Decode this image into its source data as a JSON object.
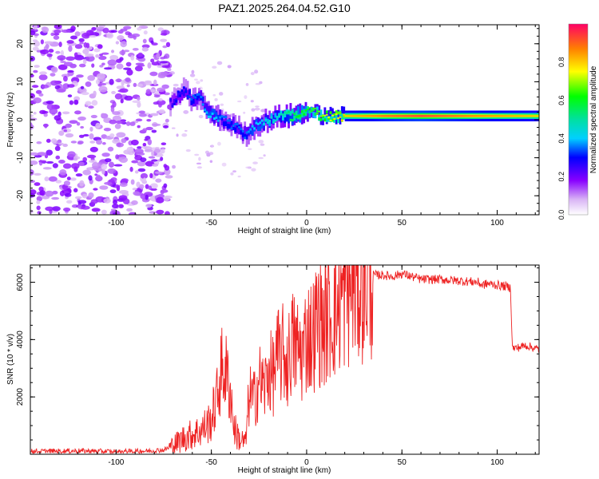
{
  "title": "PAZ1.2025.264.04.52.G10",
  "chart_data": [
    {
      "type": "heatmap",
      "xlabel": "Height of straight line (km)",
      "ylabel": "Frequency (Hz)",
      "xlim": [
        -145,
        122
      ],
      "ylim": [
        -25,
        25
      ],
      "xticks": [
        -100,
        -50,
        0,
        50,
        100
      ],
      "yticks": [
        -20,
        -10,
        0,
        10,
        20
      ],
      "ridge": {
        "x": [
          -72,
          -68,
          -64,
          -60,
          -56,
          -52,
          -48,
          -44,
          -40,
          -36,
          -32,
          -28,
          -24,
          -20,
          -16,
          -12,
          -8,
          -4,
          0,
          4,
          8,
          12,
          20,
          40,
          60,
          80,
          100,
          122
        ],
        "freq": [
          4,
          6,
          8,
          5,
          6,
          2,
          1,
          0,
          -1,
          -2,
          -4,
          -2,
          -1,
          0,
          0.5,
          1,
          1,
          1.5,
          2,
          2,
          1,
          1,
          1,
          1,
          1,
          1,
          1,
          1
        ],
        "amplitude": [
          0.25,
          0.3,
          0.3,
          0.35,
          0.35,
          0.4,
          0.4,
          0.35,
          0.35,
          0.35,
          0.35,
          0.4,
          0.4,
          0.45,
          0.45,
          0.5,
          0.55,
          0.6,
          0.6,
          0.65,
          0.7,
          0.75,
          0.8,
          0.9,
          0.95,
          0.9,
          0.85,
          0.8
        ]
      },
      "colorbar": {
        "label": "Normalized spectral amplitude",
        "ticks": [
          0.0,
          0.2,
          0.4,
          0.6,
          0.8
        ],
        "range": [
          0,
          1
        ]
      }
    },
    {
      "type": "line",
      "xlabel": "Height of straight line (km)",
      "ylabel": "SNR (10 * v/v)",
      "xlim": [
        -145,
        122
      ],
      "ylim": [
        0,
        6600
      ],
      "xticks": [
        -100,
        -50,
        0,
        50,
        100
      ],
      "yticks": [
        2000,
        4000,
        6000
      ],
      "series": [
        {
          "name": "SNR",
          "color": "#ee2222",
          "x": [
            -145,
            -120,
            -100,
            -85,
            -75,
            -70,
            -65,
            -60,
            -55,
            -50,
            -47,
            -45,
            -43,
            -40,
            -38,
            -35,
            -32,
            -30,
            -28,
            -25,
            -22,
            -20,
            -18,
            -15,
            -12,
            -10,
            -8,
            -5,
            -2,
            0,
            3,
            6,
            9,
            12,
            15,
            18,
            20,
            25,
            30,
            35,
            40,
            45,
            50,
            55,
            60,
            70,
            80,
            90,
            92,
            95,
            100,
            105,
            107,
            108,
            110,
            115,
            122
          ],
          "y": [
            100,
            120,
            90,
            110,
            150,
            300,
            550,
            700,
            850,
            1200,
            2000,
            2900,
            3000,
            2200,
            900,
            500,
            400,
            2200,
            1800,
            2600,
            2300,
            3000,
            2700,
            3400,
            3500,
            3100,
            3900,
            3700,
            3500,
            4200,
            4100,
            4700,
            4500,
            4900,
            5000,
            5400,
            5600,
            5900,
            6100,
            6250,
            6250,
            6200,
            6300,
            6200,
            6100,
            6100,
            6050,
            6000,
            5900,
            5950,
            5900,
            5850,
            5800,
            3700,
            3700,
            3800,
            3650
          ]
        }
      ]
    }
  ]
}
